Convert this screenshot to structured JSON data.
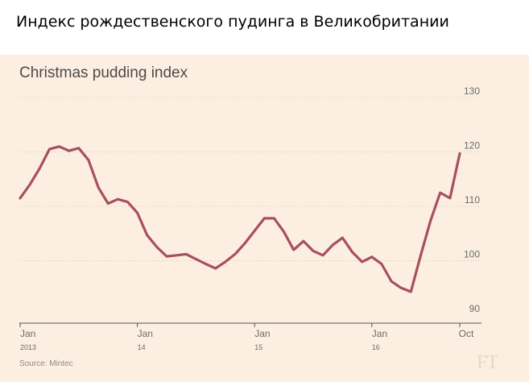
{
  "heading": "Индекс рождественского пудинга в Великобритании",
  "source": "Source: Mintec",
  "logo_text": "FT",
  "colors": {
    "line": "#a8505e",
    "background": "#fcefe1",
    "grid": "#dccbb8"
  },
  "chart_data": {
    "type": "line",
    "title": "Christmas pudding index",
    "xlabel": "",
    "ylabel": "",
    "ylim": [
      90,
      130
    ],
    "yticks": [
      130,
      120,
      110,
      100,
      90
    ],
    "grid": true,
    "x_ticks": [
      {
        "month": 0,
        "label": "Jan",
        "year": "2013"
      },
      {
        "month": 12,
        "label": "Jan",
        "year": "14"
      },
      {
        "month": 24,
        "label": "Jan",
        "year": "15"
      },
      {
        "month": 36,
        "label": "Jan",
        "year": "16"
      },
      {
        "month": 45,
        "label": "Oct",
        "year": ""
      }
    ],
    "series": [
      {
        "x": [
          0,
          1,
          2,
          3,
          4,
          5,
          6,
          7,
          8,
          9,
          10,
          11,
          12,
          13,
          14,
          15,
          16,
          17,
          18,
          19,
          20,
          21,
          22,
          23,
          24,
          25,
          26,
          27,
          28,
          29,
          30,
          31,
          32,
          33,
          34,
          35,
          36,
          37,
          38,
          39,
          40,
          41,
          42,
          43,
          44,
          45
        ],
        "values": [
          111.5,
          114,
          117,
          120.5,
          121,
          120.2,
          120.7,
          118.5,
          113.5,
          110.5,
          111.3,
          110.8,
          108.8,
          104.7,
          102.5,
          100.8,
          101,
          101.2,
          100.3,
          99.4,
          98.6,
          99.8,
          101.2,
          103.2,
          105.5,
          107.8,
          107.8,
          105.3,
          102,
          103.6,
          101.8,
          101,
          102.9,
          104.2,
          101.6,
          99.8,
          100.7,
          99.4,
          96.2,
          95,
          94.3,
          101,
          107.3,
          112.5,
          111.5,
          119.7
        ]
      }
    ]
  }
}
